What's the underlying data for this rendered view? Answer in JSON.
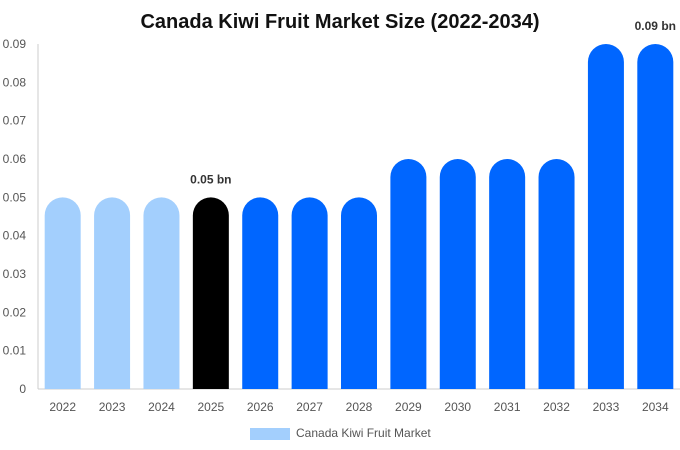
{
  "chart_data": {
    "type": "bar",
    "title": "Canada Kiwi Fruit Market Size (2022-2034)",
    "xlabel": "",
    "ylabel": "",
    "categories": [
      "2022",
      "2023",
      "2024",
      "2025",
      "2026",
      "2027",
      "2028",
      "2029",
      "2030",
      "2031",
      "2032",
      "2033",
      "2034"
    ],
    "series": [
      {
        "name": "Canada Kiwi Fruit Market",
        "values": [
          0.05,
          0.05,
          0.05,
          0.05,
          0.05,
          0.05,
          0.05,
          0.06,
          0.06,
          0.06,
          0.06,
          0.09,
          0.09
        ]
      }
    ],
    "ylim": [
      0,
      0.09
    ],
    "yticks": [
      "0",
      "0.01",
      "0.02",
      "0.03",
      "0.04",
      "0.05",
      "0.06",
      "0.07",
      "0.08",
      "0.09"
    ],
    "data_labels": [
      {
        "category": "2025",
        "text": "0.05 bn"
      },
      {
        "category": "2034",
        "text": "0.09 bn"
      }
    ],
    "bar_colors": [
      "#a3cffd",
      "#a3cffd",
      "#a3cffd",
      "#000000",
      "#0066ff",
      "#0066ff",
      "#0066ff",
      "#0066ff",
      "#0066ff",
      "#0066ff",
      "#0066ff",
      "#0066ff",
      "#0066ff"
    ],
    "legend": {
      "label": "Canada Kiwi Fruit Market",
      "color": "#a3cffd",
      "position": "bottom"
    },
    "grid": false
  }
}
